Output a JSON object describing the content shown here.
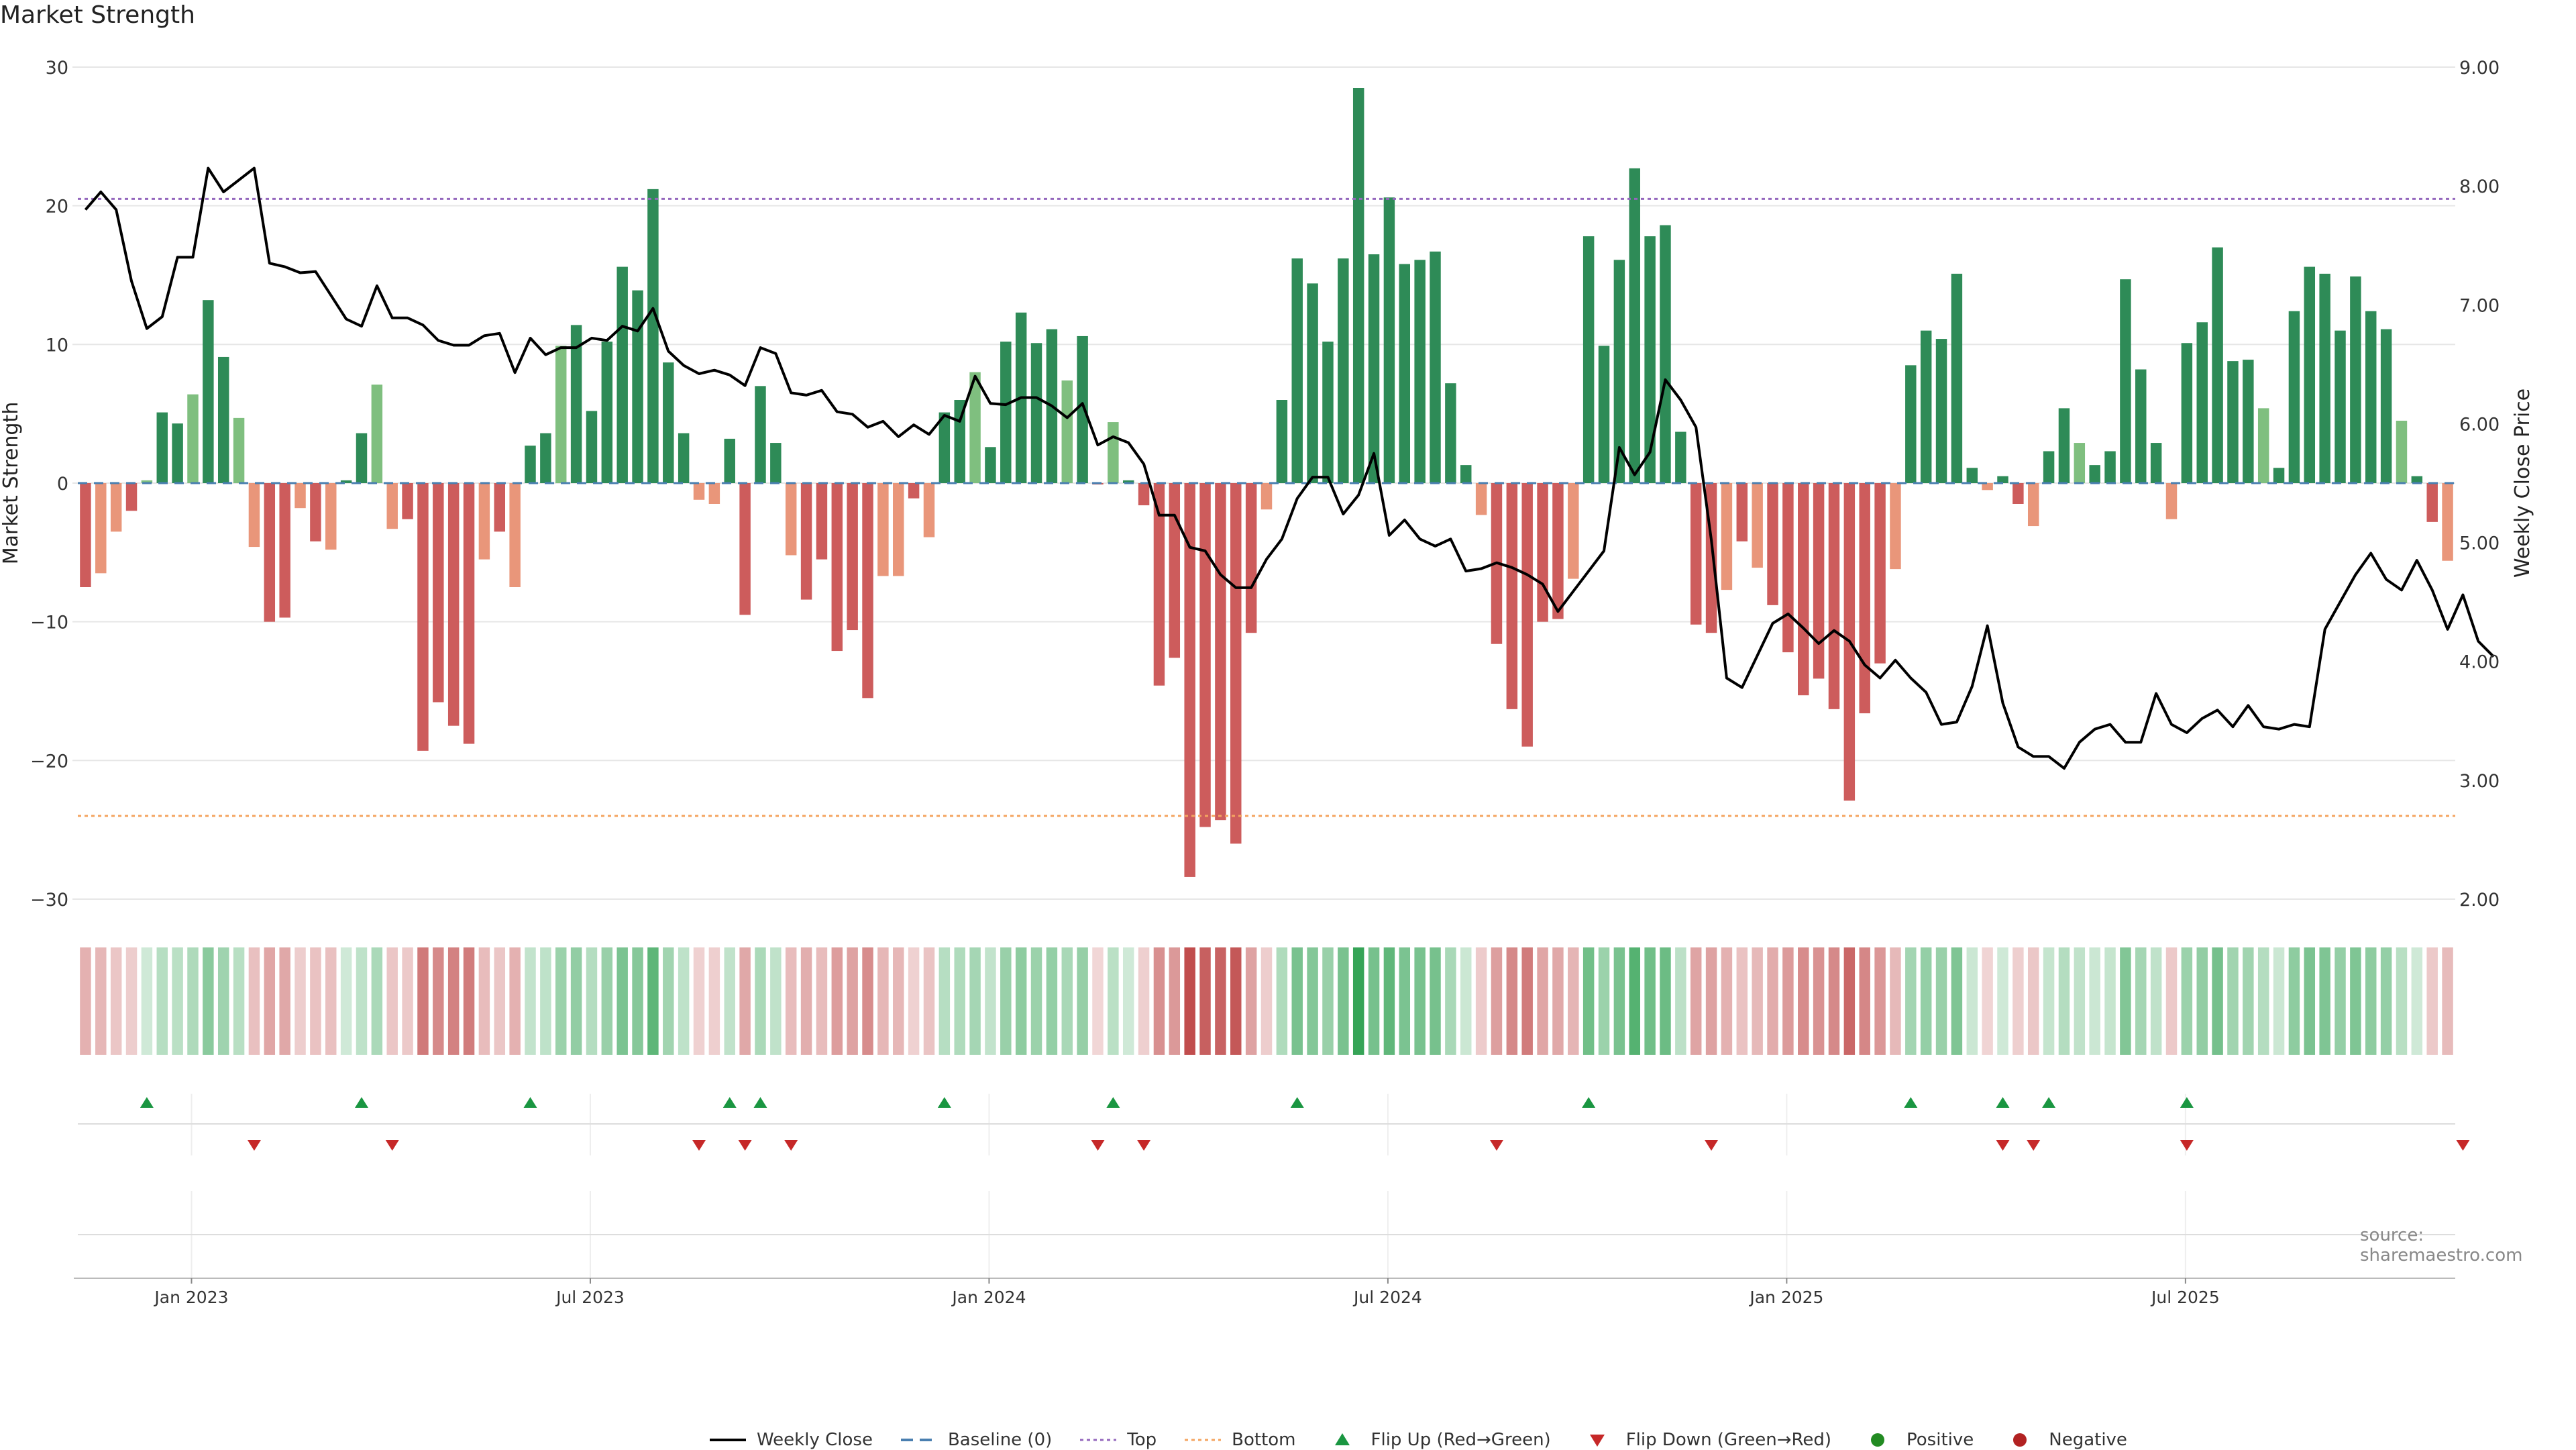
{
  "title": "Market Strength",
  "source": "source: sharemaestro.com",
  "colors": {
    "pos_strong": "#2e8b57",
    "pos_weak": "#7fbf7f",
    "neg_strong": "#cd5c5c",
    "neg_weak": "#e9967a",
    "price_line": "#000000",
    "top_line": "#9467bd",
    "bottom_line": "#f4a460",
    "baseline": "#4a7fb0",
    "flip_up": "#1a9641",
    "flip_down": "#c62828",
    "positive": "#228b22",
    "negative": "#b22222"
  },
  "legend": [
    {
      "key": "weekly_close",
      "label": "Weekly Close"
    },
    {
      "key": "baseline",
      "label": "Baseline (0)"
    },
    {
      "key": "top",
      "label": "Top"
    },
    {
      "key": "bottom",
      "label": "Bottom"
    },
    {
      "key": "flip_up",
      "label": "Flip Up (Red→Green)"
    },
    {
      "key": "flip_down",
      "label": "Flip Down (Green→Red)"
    },
    {
      "key": "positive",
      "label": "Positive"
    },
    {
      "key": "negative",
      "label": "Negative"
    }
  ],
  "chart_data": {
    "type": "bar",
    "title": "Market Strength",
    "ylabel": "Market Strength",
    "y2label": "Weekly Close Price",
    "ylim": [
      -30,
      30
    ],
    "y2lim": [
      2.0,
      9.0
    ],
    "yticks": [
      "30",
      "20",
      "10",
      "0",
      "−10",
      "−20",
      "−30"
    ],
    "y2ticks": [
      "9.00",
      "8.00",
      "7.00",
      "6.00",
      "5.00",
      "4.00",
      "3.00",
      "2.00"
    ],
    "xticks": [
      "Jan 2023",
      "Jul 2023",
      "Jan 2024",
      "Jul 2024",
      "Jan 2025",
      "Jul 2025"
    ],
    "top_level": 20.5,
    "bottom_level": -24.0,
    "grid": true,
    "legend_position": "bottom-center",
    "series": [
      {
        "name": "Market Strength",
        "values": [
          -7.5,
          -6.5,
          -3.5,
          -2,
          0.2,
          5.1,
          4.3,
          6.4,
          13.2,
          9.1,
          4.7,
          -4.6,
          -10,
          -9.7,
          -1.8,
          -4.2,
          -4.8,
          0.2,
          3.6,
          7.1,
          -3.3,
          -2.6,
          -19.3,
          -15.8,
          -17.5,
          -18.8,
          -5.5,
          -3.5,
          -7.5,
          2.7,
          3.6,
          9.9,
          11.4,
          5.2,
          10.2,
          15.6,
          13.9,
          21.2,
          8.7,
          3.6,
          -1.2,
          -1.5,
          3.2,
          -9.5,
          7,
          2.9,
          -5.2,
          -8.4,
          -5.5,
          -12.1,
          -10.6,
          -15.5,
          -6.7,
          -6.7,
          -1.1,
          -3.9,
          5.1,
          6,
          8,
          2.6,
          10.2,
          12.3,
          10.1,
          11.1,
          7.4,
          10.6,
          -0.1,
          4.4,
          0.2,
          -1.6,
          -14.6,
          -12.6,
          -28.4,
          -24.8,
          -24.3,
          -26,
          -10.8,
          -1.9,
          6,
          16.2,
          14.4,
          10.2,
          16.2,
          28.5,
          16.5,
          20.6,
          15.8,
          16.1,
          16.7,
          7.2,
          1.3,
          -2.3,
          -11.6,
          -16.3,
          -19,
          -10,
          -9.8,
          -6.9,
          17.8,
          9.9,
          16.1,
          22.7,
          17.8,
          18.6,
          3.7,
          -10.2,
          -10.8,
          -7.7,
          -4.2,
          -6.1,
          -8.8,
          -12.2,
          -15.3,
          -14.1,
          -16.3,
          -22.9,
          -16.6,
          -13,
          -6.2,
          8.5,
          11,
          10.4,
          15.1,
          1.1,
          -0.5,
          0.5,
          -1.5,
          -3.1,
          2.3,
          5.4,
          2.9,
          1.3,
          2.3,
          14.7,
          8.2,
          2.9,
          -2.6,
          10.1,
          11.6,
          17,
          8.8,
          8.9,
          5.4,
          1.1,
          12.4,
          15.6,
          15.1,
          11,
          14.9,
          12.4,
          11.1,
          4.5,
          0.5,
          -2.8,
          -5.6
        ]
      },
      {
        "name": "Weekly Close",
        "axis": "right",
        "values": [
          7.8,
          7.95,
          7.8,
          7.2,
          6.8,
          6.9,
          7.4,
          7.4,
          8.15,
          7.95,
          8.05,
          8.15,
          7.35,
          7.32,
          7.27,
          7.28,
          7.08,
          6.88,
          6.82,
          7.16,
          6.89,
          6.89,
          6.83,
          6.7,
          6.66,
          6.66,
          6.74,
          6.76,
          6.43,
          6.72,
          6.58,
          6.64,
          6.64,
          6.72,
          6.7,
          6.82,
          6.78,
          6.97,
          6.61,
          6.49,
          6.42,
          6.45,
          6.41,
          6.32,
          6.64,
          6.59,
          6.26,
          6.24,
          6.28,
          6.1,
          6.08,
          5.97,
          6.02,
          5.89,
          5.99,
          5.91,
          6.07,
          6.02,
          6.4,
          6.17,
          6.16,
          6.22,
          6.22,
          6.15,
          6.05,
          6.17,
          5.82,
          5.89,
          5.84,
          5.66,
          5.23,
          5.23,
          4.96,
          4.93,
          4.73,
          4.62,
          4.62,
          4.86,
          5.03,
          5.37,
          5.55,
          5.55,
          5.24,
          5.4,
          5.75,
          5.06,
          5.19,
          5.03,
          4.97,
          5.03,
          4.76,
          4.78,
          4.83,
          4.79,
          4.73,
          4.65,
          4.42,
          4.59,
          4.76,
          4.93,
          5.8,
          5.57,
          5.76,
          6.37,
          6.2,
          5.97,
          5.02,
          3.86,
          3.78,
          4.05,
          4.32,
          4.4,
          4.28,
          4.15,
          4.26,
          4.17,
          3.97,
          3.86,
          4.01,
          3.86,
          3.74,
          3.47,
          3.49,
          3.79,
          4.3,
          3.65,
          3.28,
          3.2,
          3.2,
          3.1,
          3.32,
          3.43,
          3.47,
          3.32,
          3.32,
          3.73,
          3.47,
          3.4,
          3.52,
          3.59,
          3.45,
          3.63,
          3.45,
          3.43,
          3.47,
          3.45,
          4.27,
          4.5,
          4.73,
          4.91,
          4.69,
          4.6,
          4.85,
          4.6,
          4.27,
          4.56,
          4.17,
          4.04
        ]
      }
    ],
    "heat_strip": [
      -7.5,
      -6.5,
      -3.5,
      -2,
      0.2,
      5.1,
      4.3,
      6.4,
      13.2,
      9.1,
      4.7,
      -4.6,
      -10,
      -9.7,
      -1.8,
      -4.2,
      -4.8,
      0.2,
      3.6,
      7.1,
      -3.3,
      -2.6,
      -19.3,
      -15.8,
      -17.5,
      -18.8,
      -5.5,
      -3.5,
      -7.5,
      2.7,
      3.6,
      9.9,
      11.4,
      5.2,
      10.2,
      15.6,
      13.9,
      21.2,
      8.7,
      3.6,
      -1.2,
      -1.5,
      3.2,
      -9.5,
      7,
      2.9,
      -5.2,
      -8.4,
      -5.5,
      -12.1,
      -10.6,
      -15.5,
      -6.7,
      -6.7,
      -1.1,
      -3.9,
      5.1,
      6,
      8,
      2.6,
      10.2,
      12.3,
      10.1,
      11.1,
      7.4,
      10.6,
      -0.1,
      4.4,
      0.2,
      -1.6,
      -14.6,
      -12.6,
      -28.4,
      -24.8,
      -24.3,
      -26,
      -10.8,
      -1.9,
      6,
      16.2,
      14.4,
      10.2,
      16.2,
      28.5,
      16.5,
      20.6,
      15.8,
      16.1,
      16.7,
      7.2,
      1.3,
      -2.3,
      -11.6,
      -16.3,
      -19,
      -10,
      -9.8,
      -6.9,
      17.8,
      9.9,
      16.1,
      22.7,
      17.8,
      18.6,
      3.7,
      -10.2,
      -10.8,
      -7.7,
      -4.2,
      -6.1,
      -8.8,
      -12.2,
      -15.3,
      -14.1,
      -16.3,
      -22.9,
      -16.6,
      -13,
      -6.2,
      8.5,
      11,
      10.4,
      15.1,
      1.1,
      -0.5,
      0.5,
      -1.5,
      -3.1,
      2.3,
      5.4,
      2.9,
      1.3,
      2.3,
      14.7,
      8.2,
      2.9,
      -2.6,
      10.1,
      11.6,
      17,
      8.8,
      8.9,
      5.4,
      1.1,
      12.4,
      15.6,
      15.1,
      11,
      14.9,
      12.4,
      11.1,
      4.5,
      0.5,
      -2.8,
      -5.6
    ],
    "flip_up_indices": [
      4,
      18,
      29,
      42,
      44,
      56,
      67,
      79,
      98,
      119,
      125,
      128,
      137
    ],
    "flip_down_indices": [
      11,
      20,
      40,
      43,
      46,
      66,
      69,
      92,
      106,
      125,
      127,
      137,
      155
    ]
  }
}
